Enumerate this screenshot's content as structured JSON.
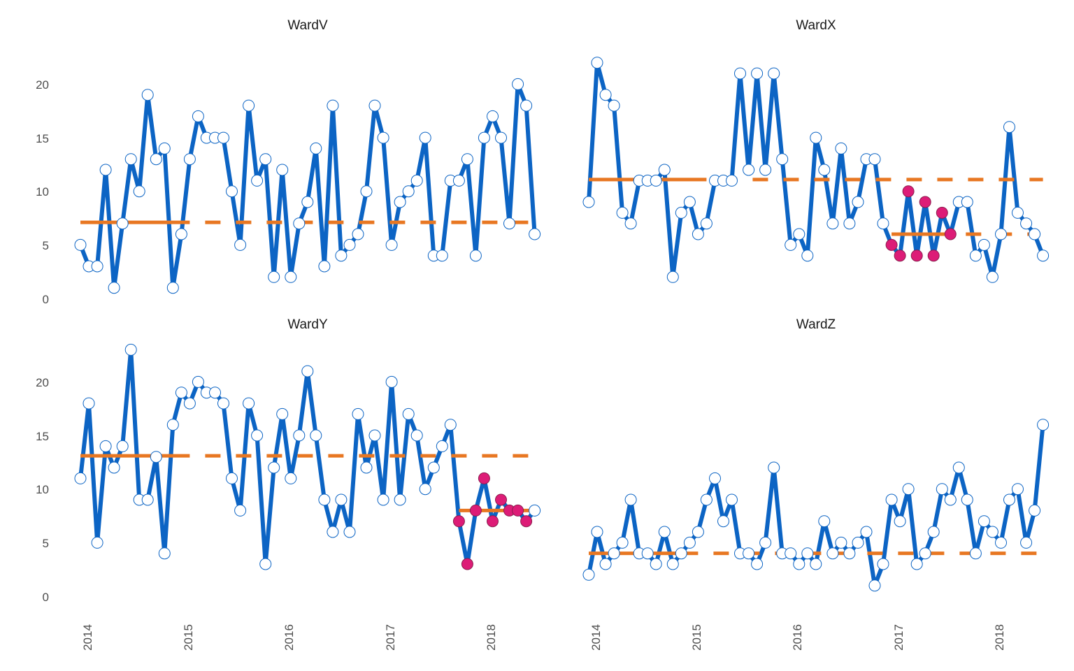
{
  "chart_data": {
    "type": "line",
    "colors": {
      "line": "#0C64C4",
      "point_fill": "#FFFFFF",
      "point_stroke": "#0C64C4",
      "centerline": "#E87722",
      "signal_point": "#DD1C77"
    },
    "ylim": [
      0,
      23
    ],
    "y_ticks": [
      "0",
      "5",
      "10",
      "15",
      "20"
    ],
    "x_ticks": [
      "2014",
      "2015",
      "2016",
      "2017",
      "2018"
    ],
    "xlim": [
      "2013-12",
      "2018-06"
    ],
    "x_tick_values": [
      "2014-01",
      "2015-01",
      "2016-01",
      "2017-01",
      "2018-01"
    ],
    "months": [
      "2013-12",
      "2014-01",
      "2014-02",
      "2014-03",
      "2014-04",
      "2014-05",
      "2014-06",
      "2014-07",
      "2014-08",
      "2014-09",
      "2014-10",
      "2014-11",
      "2014-12",
      "2015-01",
      "2015-02",
      "2015-03",
      "2015-04",
      "2015-05",
      "2015-06",
      "2015-07",
      "2015-08",
      "2015-09",
      "2015-10",
      "2015-11",
      "2015-12",
      "2016-01",
      "2016-02",
      "2016-03",
      "2016-04",
      "2016-05",
      "2016-06",
      "2016-07",
      "2016-08",
      "2016-09",
      "2016-10",
      "2016-11",
      "2016-12",
      "2017-01",
      "2017-02",
      "2017-03",
      "2017-04",
      "2017-05",
      "2017-06",
      "2017-07",
      "2017-08",
      "2017-09",
      "2017-10",
      "2017-11",
      "2017-12",
      "2018-01",
      "2018-02",
      "2018-03",
      "2018-04",
      "2018-05",
      "2018-06"
    ],
    "panels": [
      {
        "title": "WardV",
        "values": [
          5,
          3,
          3,
          12,
          1,
          7,
          13,
          10,
          19,
          13,
          14,
          1,
          6,
          13,
          17,
          15,
          15,
          15,
          10,
          5,
          18,
          11,
          13,
          2,
          12,
          2,
          7,
          9,
          14,
          3,
          18,
          4,
          5,
          6,
          10,
          18,
          15,
          5,
          9,
          10,
          11,
          15,
          4,
          4,
          11,
          11,
          13,
          4,
          15,
          17,
          15,
          7,
          20,
          18,
          6
        ],
        "segments": [
          {
            "mean": 7.1,
            "start": "2013-12",
            "end": "2018-06",
            "solid_until": "2015-01"
          }
        ],
        "signal_points": []
      },
      {
        "title": "WardX",
        "values": [
          9,
          22,
          19,
          18,
          8,
          7,
          11,
          11,
          11,
          12,
          2,
          8,
          9,
          6,
          7,
          11,
          11,
          11,
          21,
          12,
          21,
          12,
          21,
          13,
          5,
          6,
          4,
          15,
          12,
          7,
          14,
          7,
          9,
          13,
          13,
          7,
          5,
          4,
          10,
          4,
          9,
          4,
          8,
          6,
          9,
          9,
          4,
          5,
          2,
          6,
          16,
          8,
          7,
          6,
          4
        ],
        "segments": [
          {
            "mean": 11.1,
            "start": "2013-12",
            "end": "2018-06",
            "solid_until": "2015-02"
          },
          {
            "mean": 6.0,
            "start": "2016-12",
            "end": "2018-05",
            "solid_until": "2017-07"
          }
        ],
        "signal_points": [
          "2016-12",
          "2017-01",
          "2017-02",
          "2017-03",
          "2017-04",
          "2017-05",
          "2017-06",
          "2017-07"
        ]
      },
      {
        "title": "WardY",
        "values": [
          11,
          18,
          5,
          14,
          12,
          14,
          23,
          9,
          9,
          13,
          4,
          16,
          19,
          18,
          20,
          19,
          19,
          18,
          11,
          8,
          18,
          15,
          3,
          12,
          17,
          11,
          15,
          21,
          15,
          9,
          6,
          9,
          6,
          17,
          12,
          15,
          9,
          20,
          9,
          17,
          15,
          10,
          12,
          14,
          16,
          7,
          3,
          8,
          11,
          7,
          9,
          8,
          8,
          7,
          8
        ],
        "segments": [
          {
            "mean": 13.1,
            "start": "2013-12",
            "end": "2018-06",
            "solid_until": "2015-01"
          },
          {
            "mean": 8.0,
            "start": "2017-09",
            "end": "2018-06",
            "solid_until": "2018-06"
          }
        ],
        "signal_points": [
          "2017-09",
          "2017-10",
          "2017-11",
          "2017-12",
          "2018-01",
          "2018-02",
          "2018-03",
          "2018-04",
          "2018-05"
        ]
      },
      {
        "title": "WardZ",
        "values": [
          2,
          6,
          3,
          4,
          5,
          9,
          4,
          4,
          3,
          6,
          3,
          4,
          5,
          6,
          9,
          11,
          7,
          9,
          4,
          4,
          3,
          5,
          12,
          4,
          4,
          3,
          4,
          3,
          7,
          4,
          5,
          4,
          5,
          6,
          1,
          3,
          9,
          7,
          10,
          3,
          4,
          6,
          10,
          9,
          12,
          9,
          4,
          7,
          6,
          5,
          9,
          10,
          5,
          8,
          16
        ],
        "segments": [
          {
            "mean": 4.0,
            "start": "2013-12",
            "end": "2018-06",
            "solid_until": "2015-01"
          }
        ],
        "signal_points": []
      }
    ]
  }
}
